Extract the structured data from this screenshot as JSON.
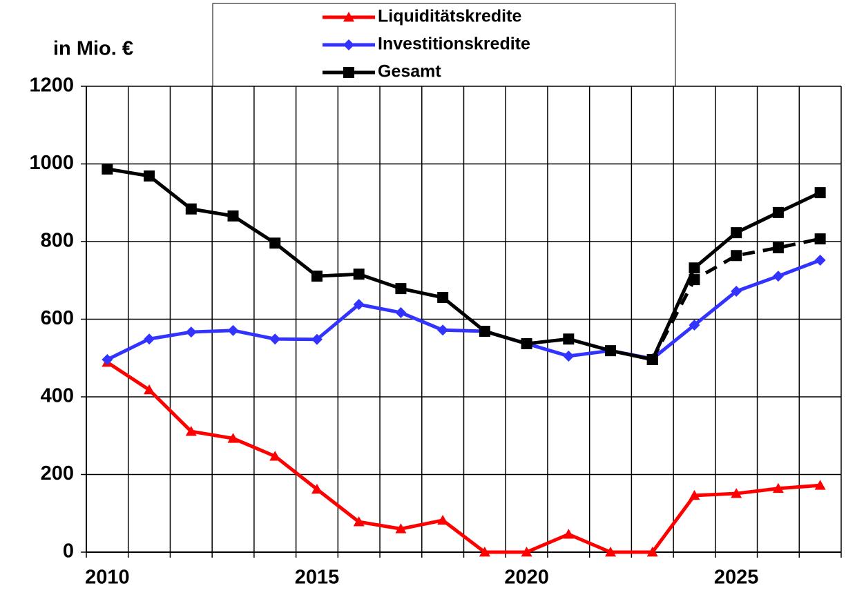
{
  "chart_data": {
    "type": "line",
    "y_label": "in Mio. €",
    "categories": [
      "2010",
      null,
      null,
      null,
      null,
      "2015",
      null,
      null,
      null,
      null,
      "2020",
      null,
      null,
      null,
      null,
      "2025",
      null,
      null
    ],
    "series": [
      {
        "name": "Liquiditätskredite",
        "color": "#ff0000",
        "marker": "triangle",
        "values": [
          489,
          418,
          311,
          293,
          247,
          162,
          78,
          60,
          82,
          0,
          0,
          46,
          0,
          0,
          146,
          151,
          164,
          172
        ]
      },
      {
        "name": "Investitionskredite",
        "color": "#3333ff",
        "marker": "diamond",
        "values": [
          496,
          549,
          567,
          571,
          549,
          548,
          638,
          617,
          572,
          569,
          537,
          505,
          519,
          498,
          585,
          672,
          711,
          752
        ]
      },
      {
        "name": "Gesamt",
        "color": "#000000",
        "marker": "square",
        "values": [
          987,
          969,
          884,
          866,
          796,
          711,
          716,
          679,
          656,
          569,
          537,
          549,
          519,
          496,
          732,
          823,
          875,
          926
        ]
      },
      {
        "color": "#000000",
        "marker": "square",
        "dashed": true,
        "values": [
          null,
          null,
          null,
          null,
          null,
          null,
          null,
          null,
          null,
          null,
          null,
          null,
          null,
          496,
          702,
          764,
          784,
          807
        ]
      }
    ],
    "ylim": [
      0,
      1200
    ],
    "yticks": [
      0,
      200,
      400,
      600,
      800,
      1000,
      1200
    ],
    "grid": true
  }
}
